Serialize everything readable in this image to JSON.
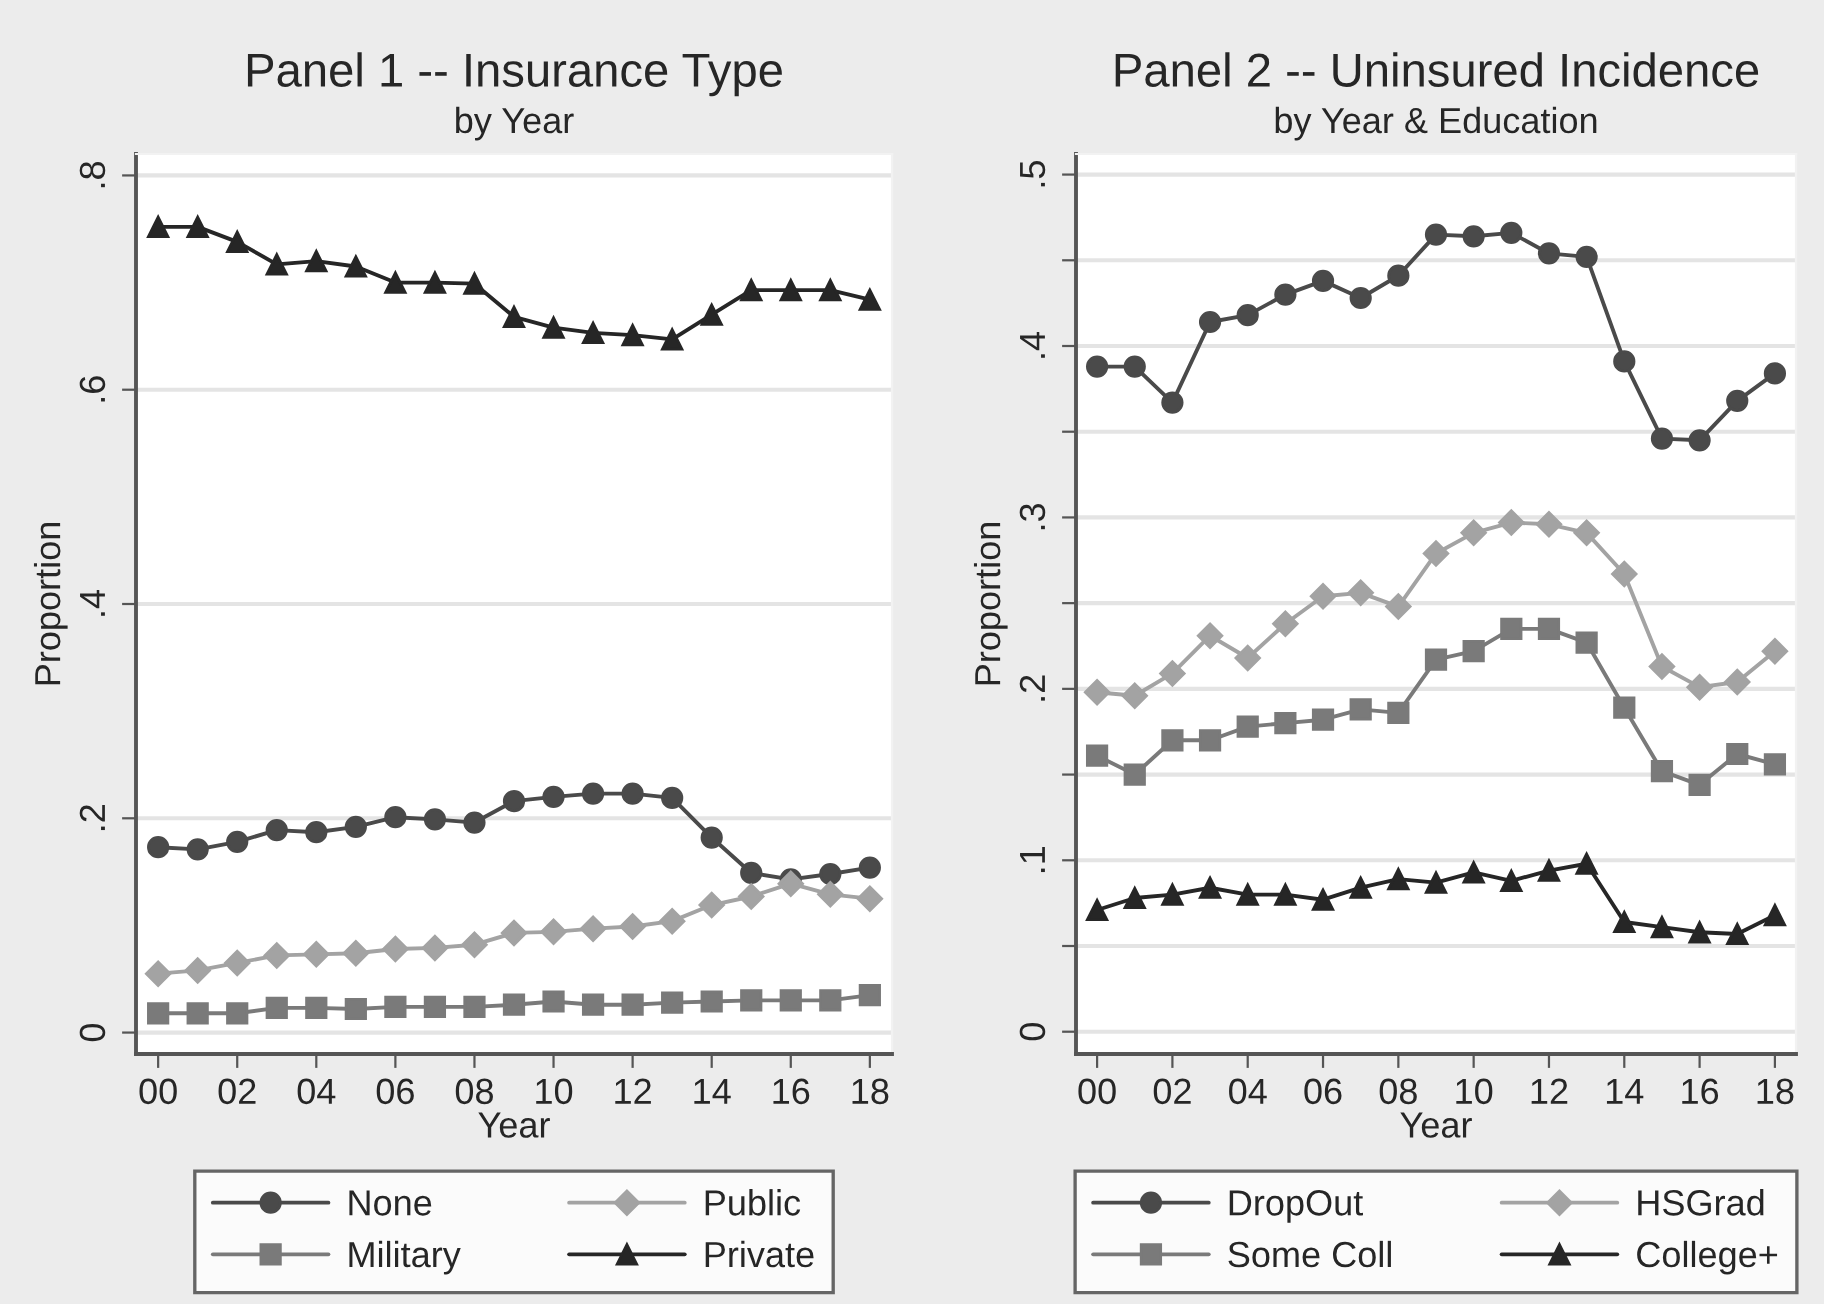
{
  "chart_data": [
    {
      "type": "line",
      "title": "Panel 1 -- Insurance Type",
      "subtitle": "by Year",
      "xlabel": "Year",
      "ylabel": "Proportion",
      "x": [
        0,
        1,
        2,
        3,
        4,
        5,
        6,
        7,
        8,
        9,
        10,
        11,
        12,
        13,
        14,
        15,
        16,
        17,
        18
      ],
      "xlim": [
        -0.56,
        18.56
      ],
      "xticks": [
        {
          "value": 0,
          "label": "00"
        },
        {
          "value": 2,
          "label": "02"
        },
        {
          "value": 4,
          "label": "04"
        },
        {
          "value": 6,
          "label": "06"
        },
        {
          "value": 8,
          "label": "08"
        },
        {
          "value": 10,
          "label": "10"
        },
        {
          "value": 12,
          "label": "12"
        },
        {
          "value": 14,
          "label": "14"
        },
        {
          "value": 16,
          "label": "16"
        },
        {
          "value": 18,
          "label": "18"
        }
      ],
      "ylim": [
        -0.02,
        0.82
      ],
      "yticks": [
        {
          "value": 0,
          "label": "0"
        },
        {
          "value": 0.2,
          "label": ".2"
        },
        {
          "value": 0.4,
          "label": ".4"
        },
        {
          "value": 0.6,
          "label": ".6"
        },
        {
          "value": 0.8,
          "label": ".8"
        }
      ],
      "grid": "y",
      "legend": "bottom",
      "line_style": "solid",
      "series": [
        {
          "name": "None",
          "color": "#4a4a4a",
          "marker": "circle",
          "values": [
            0.173,
            0.171,
            0.178,
            0.189,
            0.187,
            0.192,
            0.201,
            0.199,
            0.196,
            0.216,
            0.22,
            0.223,
            0.223,
            0.219,
            0.182,
            0.149,
            0.143,
            0.148,
            0.154
          ]
        },
        {
          "name": "Public",
          "color": "#a3a3a3",
          "marker": "diamond",
          "values": [
            0.055,
            0.058,
            0.065,
            0.072,
            0.073,
            0.074,
            0.078,
            0.079,
            0.082,
            0.093,
            0.094,
            0.097,
            0.099,
            0.104,
            0.119,
            0.127,
            0.139,
            0.129,
            0.125
          ]
        },
        {
          "name": "Military",
          "color": "#7a7a7a",
          "marker": "square",
          "values": [
            0.018,
            0.018,
            0.018,
            0.023,
            0.023,
            0.022,
            0.024,
            0.024,
            0.024,
            0.026,
            0.029,
            0.026,
            0.026,
            0.028,
            0.029,
            0.03,
            0.03,
            0.03,
            0.035
          ]
        },
        {
          "name": "Private",
          "color": "#262626",
          "marker": "triangle",
          "values": [
            0.752,
            0.752,
            0.738,
            0.717,
            0.72,
            0.715,
            0.7,
            0.7,
            0.699,
            0.668,
            0.658,
            0.653,
            0.651,
            0.647,
            0.67,
            0.693,
            0.693,
            0.693,
            0.684
          ]
        }
      ]
    },
    {
      "type": "line",
      "title": "Panel 2 -- Uninsured Incidence",
      "subtitle": "by Year & Education",
      "xlabel": "Year",
      "ylabel": "Proportion",
      "x": [
        0,
        1,
        2,
        3,
        4,
        5,
        6,
        7,
        8,
        9,
        10,
        11,
        12,
        13,
        14,
        15,
        16,
        17,
        18
      ],
      "xlim": [
        -0.56,
        18.56
      ],
      "xticks": [
        {
          "value": 0,
          "label": "00"
        },
        {
          "value": 2,
          "label": "02"
        },
        {
          "value": 4,
          "label": "04"
        },
        {
          "value": 6,
          "label": "06"
        },
        {
          "value": 8,
          "label": "08"
        },
        {
          "value": 10,
          "label": "10"
        },
        {
          "value": 12,
          "label": "12"
        },
        {
          "value": 14,
          "label": "14"
        },
        {
          "value": 16,
          "label": "16"
        },
        {
          "value": 18,
          "label": "18"
        }
      ],
      "ylim": [
        -0.013,
        0.512
      ],
      "yticks": [
        {
          "value": 0,
          "label": "0"
        },
        {
          "value": 0.05,
          "label": null
        },
        {
          "value": 0.1,
          "label": ".1"
        },
        {
          "value": 0.15,
          "label": null
        },
        {
          "value": 0.2,
          "label": ".2"
        },
        {
          "value": 0.25,
          "label": null
        },
        {
          "value": 0.3,
          "label": ".3"
        },
        {
          "value": 0.35,
          "label": null
        },
        {
          "value": 0.4,
          "label": ".4"
        },
        {
          "value": 0.45,
          "label": null
        },
        {
          "value": 0.5,
          "label": ".5"
        }
      ],
      "grid": "y",
      "legend": "bottom",
      "line_style": "solid",
      "series": [
        {
          "name": "DropOut",
          "color": "#4a4a4a",
          "marker": "circle",
          "values": [
            0.388,
            0.388,
            0.367,
            0.414,
            0.418,
            0.43,
            0.438,
            0.428,
            0.441,
            0.465,
            0.464,
            0.466,
            0.454,
            0.452,
            0.391,
            0.346,
            0.345,
            0.368,
            0.384
          ]
        },
        {
          "name": "HSGrad",
          "color": "#a3a3a3",
          "marker": "diamond",
          "values": [
            0.198,
            0.196,
            0.209,
            0.231,
            0.218,
            0.238,
            0.254,
            0.256,
            0.248,
            0.279,
            0.291,
            0.297,
            0.296,
            0.291,
            0.267,
            0.213,
            0.201,
            0.204,
            0.222
          ]
        },
        {
          "name": "Some Coll",
          "color": "#7a7a7a",
          "marker": "square",
          "values": [
            0.161,
            0.15,
            0.17,
            0.17,
            0.178,
            0.18,
            0.182,
            0.188,
            0.186,
            0.217,
            0.222,
            0.235,
            0.235,
            0.227,
            0.189,
            0.152,
            0.144,
            0.162,
            0.156
          ]
        },
        {
          "name": "College+",
          "color": "#262626",
          "marker": "triangle",
          "values": [
            0.071,
            0.078,
            0.08,
            0.084,
            0.08,
            0.08,
            0.077,
            0.084,
            0.089,
            0.087,
            0.093,
            0.088,
            0.094,
            0.098,
            0.064,
            0.061,
            0.058,
            0.057,
            0.068
          ]
        }
      ]
    }
  ]
}
